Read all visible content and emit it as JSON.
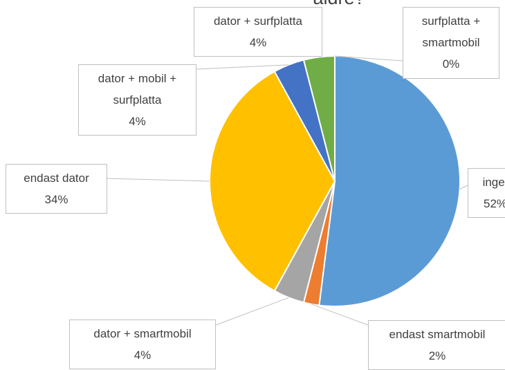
{
  "chart_data": {
    "type": "pie",
    "title": "äldre?",
    "categories": [
      "inget",
      "endast smartmobil",
      "dator + smartmobil",
      "endast dator",
      "dator + mobil + surfplatta",
      "dator + surfplatta",
      "surfplatta + smartmobil"
    ],
    "values": [
      52,
      2,
      4,
      34,
      4,
      4,
      0
    ],
    "value_labels": [
      "52%",
      "2%",
      "4%",
      "34%",
      "4%",
      "4%",
      "0%"
    ],
    "colors": [
      "#5b9bd5",
      "#ed7d31",
      "#a5a5a5",
      "#ffc000",
      "#4472c4",
      "#70ad47",
      "#264478"
    ]
  }
}
